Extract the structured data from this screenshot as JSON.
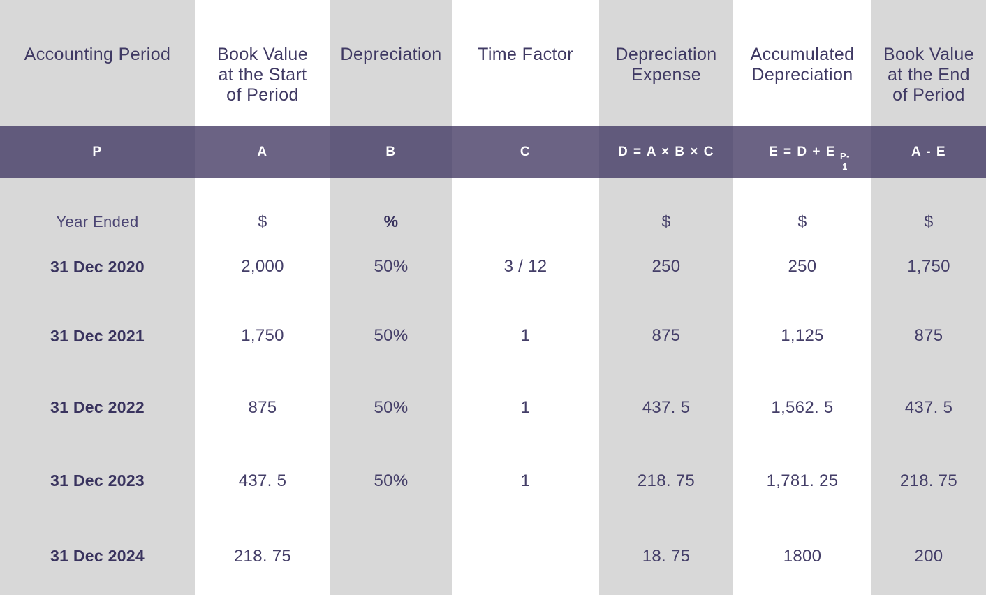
{
  "colors": {
    "column_gray": "#d8d8d8",
    "column_white": "#ffffff",
    "band_purple_dark": "#615a7c",
    "band_purple_light": "#6b6384",
    "heading_text": "#3f3963",
    "value_text": "#443e68",
    "bold_text": "#39335e",
    "band_text": "#ffffff"
  },
  "ui": {
    "header_titles": [
      "Accounting Period",
      "Book Value\nat the Start\nof Period",
      "Depreciation",
      "Time Factor",
      "Depreciation\nExpense",
      "Accumulated\nDepreciation",
      "Book Value\nat the End\nof Period"
    ]
  },
  "chart_data": {
    "type": "table",
    "columns": [
      "Accounting Period",
      "Book Value at the Start of Period",
      "Depreciation",
      "Time Factor",
      "Depreciation Expense",
      "Accumulated Depreciation",
      "Book Value at the End of Period"
    ],
    "codes": [
      "P",
      "A",
      "B",
      "C",
      "D = A × B × C",
      "E = D + E",
      "A - E"
    ],
    "code_subscript": "P-1",
    "units": [
      "Year Ended",
      "$",
      "%",
      "",
      "$",
      "$",
      "$"
    ],
    "rows": [
      [
        "31 Dec 2020",
        "2,000",
        "50%",
        "3 / 12",
        "250",
        "250",
        "1,750"
      ],
      [
        "31 Dec 2021",
        "1,750",
        "50%",
        "1",
        "875",
        "1,125",
        "875"
      ],
      [
        "31 Dec 2022",
        "875",
        "50%",
        "1",
        "437. 5",
        "1,562. 5",
        "437. 5"
      ],
      [
        "31 Dec 2023",
        "437. 5",
        "50%",
        "1",
        "218. 75",
        "1,781. 25",
        "218. 75"
      ],
      [
        "31 Dec 2024",
        "218. 75",
        "",
        "",
        "18. 75",
        "1800",
        "200"
      ]
    ]
  }
}
